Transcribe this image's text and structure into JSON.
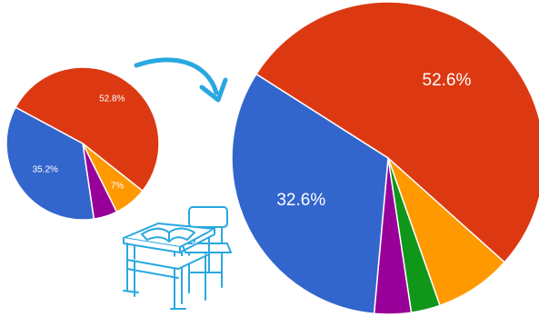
{
  "chart_data": [
    {
      "type": "pie",
      "slices": [
        {
          "label": "52.8%",
          "value": 52.8,
          "color": "#dc3912"
        },
        {
          "label": "7%",
          "value": 7.0,
          "color": "#ff9900"
        },
        {
          "label": "",
          "value": 5.0,
          "color": "#990099"
        },
        {
          "label": "35.2%",
          "value": 35.2,
          "color": "#3366cc"
        }
      ]
    },
    {
      "type": "pie",
      "slices": [
        {
          "label": "52.6%",
          "value": 52.6,
          "color": "#dc3912"
        },
        {
          "label": "",
          "value": 8.0,
          "color": "#ff9900"
        },
        {
          "label": "",
          "value": 3.0,
          "color": "#109618"
        },
        {
          "label": "",
          "value": 3.8,
          "color": "#990099"
        },
        {
          "label": "32.6%",
          "value": 32.6,
          "color": "#3366cc"
        }
      ]
    }
  ],
  "decorations": {
    "arrow_icon": "curved-arrow-icon",
    "desk_icon": "school-desk-with-book-icon",
    "arrow_color": "#29a8e0",
    "desk_color": "#29a8e0"
  }
}
